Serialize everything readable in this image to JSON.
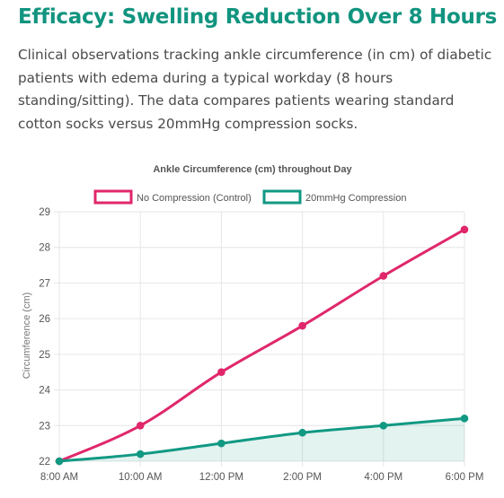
{
  "page": {
    "heading": "Efficacy: Swelling Reduction Over 8 Hours",
    "description": "Clinical observations tracking ankle circumference (in cm) of diabetic patients with edema during a typical workday (8 hours standing/sitting). The data compares patients wearing standard cotton socks versus 20mmHg compression socks."
  },
  "chart_data": {
    "type": "line",
    "title": "Ankle Circumference (cm) throughout Day",
    "xlabel": "",
    "ylabel": "Circumference (cm)",
    "categories": [
      "8:00 AM",
      "10:00 AM",
      "12:00 PM",
      "2:00 PM",
      "4:00 PM",
      "6:00 PM"
    ],
    "ylim": [
      22,
      29
    ],
    "yticks": [
      22,
      23,
      24,
      25,
      26,
      27,
      28,
      29
    ],
    "grid": true,
    "legend": "top-center",
    "series": [
      {
        "name": "No Compression (Control)",
        "values": [
          22.0,
          23.0,
          24.5,
          25.8,
          27.2,
          28.5
        ],
        "color": "#e0276b",
        "fill": false
      },
      {
        "name": "20mmHg Compression",
        "values": [
          22.0,
          22.2,
          22.5,
          22.8,
          23.0,
          23.2
        ],
        "color": "#119983",
        "fill": true,
        "fill_color": "rgba(17,153,131,0.12)"
      }
    ]
  }
}
